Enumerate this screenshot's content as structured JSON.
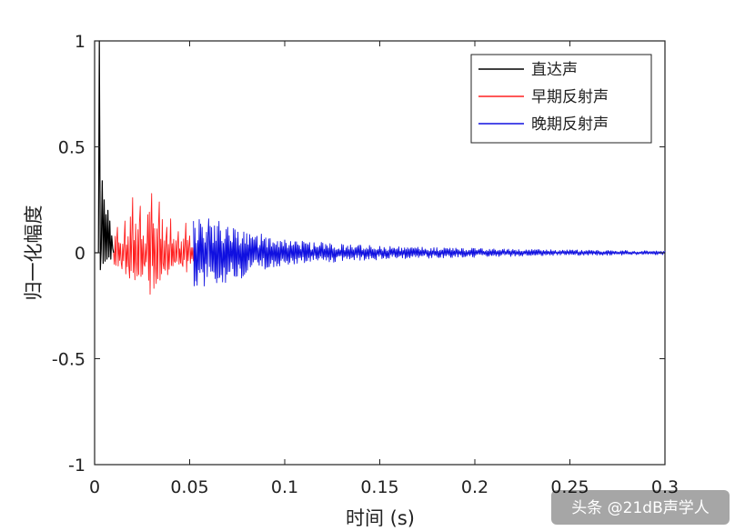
{
  "chart_data": {
    "type": "line",
    "xlabel": "时间 (s)",
    "ylabel": "归一化幅度",
    "xlim": [
      0,
      0.3
    ],
    "ylim": [
      -1,
      1
    ],
    "xticks": [
      "0",
      "0.05",
      "0.1",
      "0.15",
      "0.2",
      "0.25",
      "0.3"
    ],
    "yticks": [
      "1",
      "0.5",
      "0",
      "-0.5",
      "-1"
    ],
    "grid": false,
    "legend_position": "top-right",
    "series": [
      {
        "name": "直达声",
        "color": "#000000",
        "x": [
          0.0,
          0.002,
          0.0025,
          0.003,
          0.0035,
          0.004,
          0.0045,
          0.005,
          0.0055,
          0.006,
          0.0065,
          0.007,
          0.0075,
          0.008,
          0.0085,
          0.009,
          0.0095,
          0.01
        ],
        "y": [
          0.0,
          0.0,
          1.0,
          -0.08,
          0.02,
          0.34,
          -0.05,
          0.25,
          -0.04,
          0.18,
          -0.03,
          0.2,
          -0.02,
          0.15,
          -0.03,
          0.08,
          0.02,
          0.0
        ]
      },
      {
        "name": "早期反射声",
        "color": "#ff2020",
        "x": [
          0.01,
          0.012,
          0.014,
          0.016,
          0.018,
          0.02,
          0.022,
          0.024,
          0.026,
          0.028,
          0.03,
          0.032,
          0.034,
          0.036,
          0.038,
          0.04,
          0.042,
          0.044,
          0.046,
          0.048,
          0.05,
          0.052
        ],
        "y": [
          0.0,
          0.12,
          -0.05,
          0.15,
          -0.06,
          0.26,
          -0.04,
          0.22,
          -0.05,
          0.18,
          0.28,
          -0.06,
          0.24,
          -0.05,
          0.12,
          0.16,
          -0.04,
          0.1,
          -0.05,
          0.14,
          0.08,
          -0.04
        ]
      },
      {
        "name": "晚期反射声",
        "color": "#1010e0",
        "x": [
          0.052,
          0.06,
          0.07,
          0.08,
          0.09,
          0.1,
          0.11,
          0.12,
          0.13,
          0.14,
          0.15,
          0.16,
          0.17,
          0.18,
          0.19,
          0.2,
          0.21,
          0.22,
          0.23,
          0.24,
          0.25,
          0.26,
          0.27,
          0.28,
          0.29,
          0.3
        ],
        "y": [
          0.15,
          0.16,
          0.12,
          0.09,
          0.07,
          0.06,
          0.05,
          0.045,
          0.04,
          0.035,
          0.03,
          0.028,
          0.026,
          0.024,
          0.022,
          0.02,
          0.018,
          0.016,
          0.015,
          0.014,
          0.013,
          0.012,
          0.011,
          0.01,
          0.009,
          0.008
        ]
      }
    ]
  },
  "watermark": "头条 @21dB声学人"
}
